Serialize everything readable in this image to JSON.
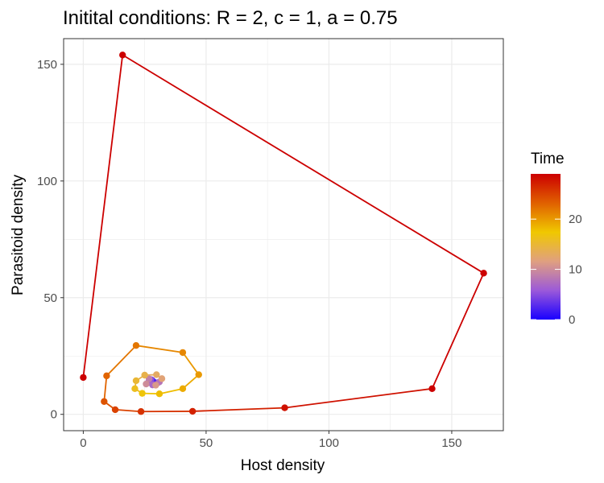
{
  "chart_data": {
    "type": "line",
    "title": "Initital conditions: R = 2, c = 1, a = 0.75",
    "xlabel": "Host density",
    "ylabel": "Parasitoid density",
    "xlim": [
      -8,
      171
    ],
    "ylim": [
      -7,
      161
    ],
    "x_ticks": [
      0,
      50,
      100,
      150
    ],
    "y_ticks": [
      0,
      50,
      100,
      150
    ],
    "grid": true,
    "legend": {
      "title": "Time",
      "position": "right",
      "ticks": [
        0,
        10,
        20
      ],
      "range": [
        0,
        29
      ],
      "colors": [
        "#1a00ff",
        "#9b59d9",
        "#e0a080",
        "#f0c800",
        "#e06000",
        "#cc0000"
      ]
    },
    "series": [
      {
        "points": [
          {
            "t": 0,
            "x": 28.5,
            "y": 14.0
          },
          {
            "t": 1,
            "x": 28.0,
            "y": 14.6
          },
          {
            "t": 2,
            "x": 27.3,
            "y": 13.8
          },
          {
            "t": 3,
            "x": 28.6,
            "y": 13.0
          },
          {
            "t": 4,
            "x": 30.4,
            "y": 13.6
          },
          {
            "t": 5,
            "x": 27.6,
            "y": 14.9
          },
          {
            "t": 6,
            "x": 26.4,
            "y": 13.6
          },
          {
            "t": 7,
            "x": 28.2,
            "y": 12.6
          },
          {
            "t": 8,
            "x": 31.0,
            "y": 13.9
          },
          {
            "t": 9,
            "x": 26.8,
            "y": 15.2
          },
          {
            "t": 10,
            "x": 25.6,
            "y": 13.0
          },
          {
            "t": 11,
            "x": 29.5,
            "y": 12.5
          },
          {
            "t": 12,
            "x": 32.0,
            "y": 15.3
          },
          {
            "t": 13,
            "x": 29.8,
            "y": 17.0
          },
          {
            "t": 14,
            "x": 25.0,
            "y": 16.8
          },
          {
            "t": 15,
            "x": 21.5,
            "y": 14.4
          },
          {
            "t": 16,
            "x": 21.0,
            "y": 11.0
          },
          {
            "t": 17,
            "x": 24.0,
            "y": 9.0
          },
          {
            "t": 18,
            "x": 31.0,
            "y": 8.8
          },
          {
            "t": 19,
            "x": 40.5,
            "y": 11.0
          },
          {
            "t": 20,
            "x": 47.0,
            "y": 17.0
          },
          {
            "t": 21,
            "x": 40.5,
            "y": 26.5
          },
          {
            "t": 22,
            "x": 21.5,
            "y": 29.5
          },
          {
            "t": 23,
            "x": 9.5,
            "y": 16.5
          },
          {
            "t": 24,
            "x": 8.5,
            "y": 5.5
          },
          {
            "t": 25,
            "x": 13.0,
            "y": 2.0
          },
          {
            "t": 26,
            "x": 23.5,
            "y": 1.2
          },
          {
            "t": 27,
            "x": 44.5,
            "y": 1.3
          },
          {
            "t": 28,
            "x": 82.0,
            "y": 2.8
          },
          {
            "t": 29,
            "x": 142.0,
            "y": 11.0
          },
          {
            "t": 30,
            "x": 163.0,
            "y": 60.5
          },
          {
            "t": 31,
            "x": 16.0,
            "y": 154.0
          },
          {
            "t": 32,
            "x": 0.0,
            "y": 15.8
          }
        ]
      }
    ]
  }
}
